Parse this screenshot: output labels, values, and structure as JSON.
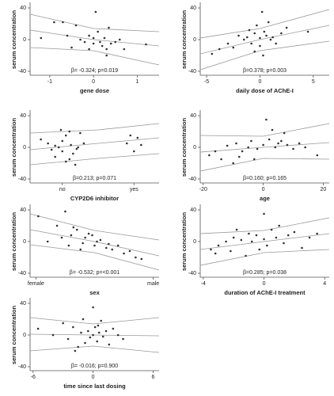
{
  "chart_data": [
    {
      "type": "scatter",
      "xlabel": "gene dose",
      "ylabel": "serum concentration",
      "annotation": "β= -0.324; p=0.019",
      "xlim": [
        -1.45,
        1.5
      ],
      "ylim": [
        -43,
        43
      ],
      "xticks": [
        -1,
        0,
        1
      ],
      "yticks": [
        40,
        0,
        -40
      ],
      "x": [
        -1.2,
        -0.9,
        -0.7,
        -0.6,
        -0.4,
        -0.3,
        -0.2,
        -0.1,
        0,
        0,
        0.05,
        0.1,
        0.15,
        0.2,
        0.25,
        0.3,
        0.35,
        0.4,
        0.5,
        0.6,
        0.7,
        1.2,
        -0.5,
        -0.1,
        0.3
      ],
      "values": [
        2,
        22,
        22,
        5,
        18,
        0,
        -3,
        5,
        2,
        -5,
        35,
        10,
        -3,
        -8,
        2,
        -12,
        15,
        -5,
        -3,
        0,
        -12,
        -6,
        -10,
        -12,
        -20
      ],
      "fits": [
        {
          "x": [
            -1.45,
            0,
            1.5
          ],
          "values": [
            12,
            0,
            -8
          ]
        },
        {
          "x": [
            -1.45,
            0,
            1.5
          ],
          "values": [
            32,
            14,
            10
          ]
        },
        {
          "x": [
            -1.45,
            0,
            1.5
          ],
          "values": [
            -10,
            -14,
            -32
          ]
        }
      ]
    },
    {
      "type": "scatter",
      "xlabel": "daily dose of AChE-I",
      "ylabel": "serum concentration",
      "annotation": "β=0.378; p=0.003",
      "xlim": [
        -5.6,
        6.5
      ],
      "ylim": [
        -43,
        43
      ],
      "xticks": [
        -5,
        0,
        5
      ],
      "yticks": [
        40,
        0,
        -40
      ],
      "x": [
        -4.5,
        -3.8,
        -3,
        -2.5,
        -2,
        -1.5,
        -1.2,
        -1,
        -0.8,
        -0.5,
        -0.3,
        0,
        0,
        0.2,
        0.4,
        0.6,
        0.8,
        1,
        1.2,
        1.5,
        2,
        2.5,
        4.5,
        -0.5,
        0.3
      ],
      "values": [
        -18,
        -12,
        -5,
        -10,
        5,
        0,
        3,
        12,
        -5,
        8,
        18,
        2,
        -8,
        35,
        10,
        5,
        22,
        0,
        3,
        -5,
        8,
        15,
        10,
        -15,
        -20
      ],
      "fits": [
        {
          "x": [
            -5.6,
            0,
            6.5
          ],
          "values": [
            -18,
            0,
            18
          ]
        },
        {
          "x": [
            -5.6,
            0,
            6.5
          ],
          "values": [
            2,
            14,
            38
          ]
        },
        {
          "x": [
            -5.6,
            0,
            6.5
          ],
          "values": [
            -38,
            -14,
            -2
          ]
        }
      ]
    },
    {
      "type": "scatter",
      "xlabel": "CYP2D6 inhibitor",
      "ylabel": "serum concentration",
      "annotation": "β=0.213; p=0.071",
      "xlim": [
        -0.45,
        1.35
      ],
      "ylim": [
        -43,
        43
      ],
      "xticks": [
        {
          "value": 0,
          "label": "no"
        },
        {
          "value": 1,
          "label": "yes"
        }
      ],
      "yticks": [
        40,
        0,
        -40
      ],
      "x": [
        -0.3,
        -0.2,
        -0.15,
        -0.1,
        -0.05,
        0,
        0,
        0.05,
        0.1,
        0.12,
        0.15,
        0.2,
        0.25,
        0.3,
        -0.1,
        0.05,
        0.1,
        0.18,
        0.9,
        0.95,
        1.0,
        1.05,
        1.1,
        0.22,
        -0.02
      ],
      "values": [
        10,
        5,
        -3,
        2,
        0,
        -5,
        8,
        15,
        20,
        3,
        -8,
        -2,
        18,
        5,
        -12,
        -18,
        -15,
        -22,
        5,
        15,
        -5,
        12,
        3,
        0,
        22
      ],
      "fits": [
        {
          "x": [
            -0.45,
            0.5,
            1.35
          ],
          "values": [
            -3,
            5,
            12
          ]
        },
        {
          "x": [
            -0.45,
            0.5,
            1.35
          ],
          "values": [
            18,
            22,
            30
          ]
        },
        {
          "x": [
            -0.45,
            0.5,
            1.35
          ],
          "values": [
            -22,
            -14,
            -8
          ]
        }
      ]
    },
    {
      "type": "scatter",
      "xlabel": "age",
      "ylabel": "serum concentration",
      "annotation": "β=0.160; p=0.165",
      "xlim": [
        -21,
        22
      ],
      "ylim": [
        -43,
        43
      ],
      "xticks": [
        -20,
        0,
        20
      ],
      "yticks": [
        40,
        0,
        -40
      ],
      "x": [
        -18,
        -16,
        -14,
        -12,
        -10,
        -9,
        -7,
        -5,
        -4,
        -2,
        0,
        1,
        2,
        3,
        4,
        5,
        6,
        7,
        8,
        10,
        12,
        14,
        18,
        -8,
        -3
      ],
      "values": [
        -10,
        -5,
        -15,
        2,
        -20,
        5,
        -5,
        0,
        8,
        -2,
        3,
        35,
        10,
        22,
        0,
        5,
        8,
        18,
        3,
        -2,
        5,
        0,
        -10,
        -12,
        -15
      ],
      "fits": [
        {
          "x": [
            -21,
            0,
            22
          ],
          "values": [
            -6,
            0,
            6
          ]
        },
        {
          "x": [
            -21,
            0,
            22
          ],
          "values": [
            15,
            14,
            30
          ]
        },
        {
          "x": [
            -21,
            0,
            22
          ],
          "values": [
            -30,
            -14,
            -15
          ]
        }
      ]
    },
    {
      "type": "scatter",
      "xlabel": "sex",
      "ylabel": "serum concentration",
      "annotation": "β= -0.532; p=<0.001",
      "xlim": [
        -0.05,
        1.05
      ],
      "ylim": [
        -43,
        43
      ],
      "xticks": [
        {
          "value": 0,
          "label": "female"
        },
        {
          "value": 1,
          "label": "male"
        }
      ],
      "yticks": [
        40,
        0,
        -40
      ],
      "x": [
        0.02,
        0.1,
        0.18,
        0.22,
        0.25,
        0.3,
        0.32,
        0.35,
        0.4,
        0.42,
        0.45,
        0.5,
        0.52,
        0.55,
        0.6,
        0.62,
        0.65,
        0.7,
        0.75,
        0.8,
        0.85,
        0.9,
        0.28,
        0.38,
        0.48
      ],
      "values": [
        32,
        0,
        20,
        5,
        38,
        8,
        18,
        15,
        -2,
        5,
        10,
        -5,
        0,
        2,
        -8,
        -3,
        -10,
        -5,
        -15,
        -12,
        -20,
        -22,
        -5,
        -10,
        8
      ],
      "fits": [
        {
          "x": [
            -0.05,
            0.5,
            1.05
          ],
          "values": [
            15,
            0,
            -18
          ]
        },
        {
          "x": [
            -0.05,
            0.5,
            1.05
          ],
          "values": [
            35,
            14,
            2
          ]
        },
        {
          "x": [
            -0.05,
            0.5,
            1.05
          ],
          "values": [
            -4,
            -14,
            -36
          ]
        }
      ]
    },
    {
      "type": "scatter",
      "xlabel": "duration of AChE-I treatment",
      "ylabel": "serum concentration",
      "annotation": "β=0.285; p=0.038",
      "xlim": [
        -4.2,
        4.3
      ],
      "ylim": [
        -43,
        43
      ],
      "xticks": [
        -4,
        0,
        4
      ],
      "yticks": [
        40,
        0,
        -40
      ],
      "x": [
        -3.5,
        -3.2,
        -3,
        -2.5,
        -2.2,
        -2,
        -1.5,
        -1.2,
        -1,
        -0.8,
        -0.5,
        0,
        0,
        0.2,
        0.5,
        0.8,
        1,
        1.3,
        1.6,
        2,
        2.5,
        3,
        3.5,
        -1.8,
        -0.3
      ],
      "values": [
        -10,
        -15,
        -5,
        0,
        -12,
        5,
        2,
        -18,
        10,
        0,
        8,
        35,
        3,
        -5,
        15,
        5,
        20,
        -2,
        8,
        12,
        -8,
        5,
        10,
        15,
        -10
      ],
      "fits": [
        {
          "x": [
            -4.2,
            0,
            4.3
          ],
          "values": [
            -10,
            0,
            10
          ]
        },
        {
          "x": [
            -4.2,
            0,
            4.3
          ],
          "values": [
            10,
            14,
            30
          ]
        },
        {
          "x": [
            -4.2,
            0,
            4.3
          ],
          "values": [
            -30,
            -14,
            -10
          ]
        }
      ]
    },
    {
      "type": "scatter",
      "xlabel": "time since last dosing",
      "ylabel": "serum concentration",
      "annotation": "β= -0.016; p=0.900",
      "xlim": [
        -6.3,
        6.6
      ],
      "ylim": [
        -43,
        43
      ],
      "xticks": [
        -6,
        0,
        6
      ],
      "yticks": [
        40,
        0,
        -40
      ],
      "x": [
        -5.5,
        -4,
        -3,
        -2.5,
        -2,
        -1.5,
        -1.2,
        -1,
        -0.8,
        -0.5,
        -0.3,
        0,
        0,
        0.2,
        0.4,
        0.6,
        0.8,
        1,
        1.3,
        1.6,
        2,
        2.5,
        3,
        -1.8,
        0.5
      ],
      "values": [
        8,
        0,
        15,
        -5,
        10,
        -15,
        3,
        20,
        -10,
        5,
        -3,
        35,
        0,
        10,
        -8,
        3,
        18,
        -2,
        5,
        -12,
        8,
        0,
        -5,
        -20,
        12
      ],
      "fits": [
        {
          "x": [
            -6.3,
            0,
            6.6
          ],
          "values": [
            1,
            0,
            -1
          ]
        },
        {
          "x": [
            -6.3,
            0,
            6.6
          ],
          "values": [
            22,
            14,
            22
          ]
        },
        {
          "x": [
            -6.3,
            0,
            6.6
          ],
          "values": [
            -20,
            -14,
            -22
          ]
        }
      ]
    }
  ]
}
